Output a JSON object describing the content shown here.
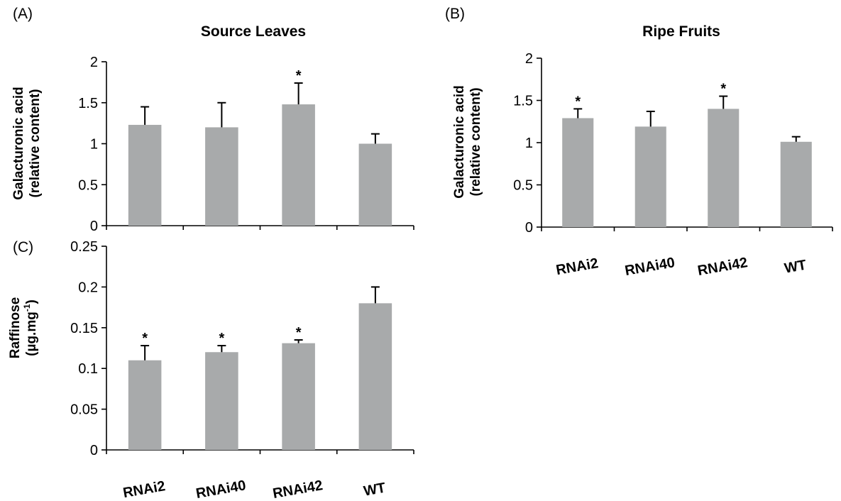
{
  "chart_data": [
    {
      "id": "A",
      "type": "bar",
      "panel_label": "(A)",
      "title": "Source Leaves",
      "ylabel_lines": [
        "Galacturonic acid",
        "(relative content)"
      ],
      "categories": [
        "RNAi2",
        "RNAi40",
        "RNAi42",
        "WT"
      ],
      "show_category_labels": false,
      "values": [
        1.23,
        1.2,
        1.48,
        1.0
      ],
      "errors": [
        0.22,
        0.3,
        0.26,
        0.12
      ],
      "significance": [
        "",
        "",
        "*",
        ""
      ],
      "ylim": [
        0,
        2
      ],
      "yticks": [
        0,
        0.5,
        1,
        1.5,
        2
      ],
      "ytick_labels": [
        "0",
        "0.5",
        "1",
        "1.5",
        "2"
      ],
      "bar_color": "#a8aaab",
      "grid": false
    },
    {
      "id": "B",
      "type": "bar",
      "panel_label": "(B)",
      "title": "Ripe Fruits",
      "ylabel_lines": [
        "Galacturonic acid",
        "(relative content)"
      ],
      "categories": [
        "RNAi2",
        "RNAi40",
        "RNAi42",
        "WT"
      ],
      "show_category_labels": true,
      "values": [
        1.29,
        1.19,
        1.4,
        1.01
      ],
      "errors": [
        0.11,
        0.18,
        0.15,
        0.06
      ],
      "significance": [
        "*",
        "",
        "*",
        ""
      ],
      "ylim": [
        0,
        2
      ],
      "yticks": [
        0,
        0.5,
        1,
        1.5,
        2
      ],
      "ytick_labels": [
        "0",
        "0.5",
        "1",
        "1.5",
        "2"
      ],
      "bar_color": "#a8aaab",
      "grid": false
    },
    {
      "id": "C",
      "type": "bar",
      "panel_label": "(C)",
      "title": "",
      "ylabel_lines": [
        "Raffinose",
        "(µg.mg",
        "-1",
        ")"
      ],
      "categories": [
        "RNAi2",
        "RNAi40",
        "RNAi42",
        "WT"
      ],
      "show_category_labels": true,
      "values": [
        0.11,
        0.12,
        0.131,
        0.18
      ],
      "errors": [
        0.018,
        0.008,
        0.004,
        0.02
      ],
      "significance": [
        "*",
        "*",
        "*",
        ""
      ],
      "ylim": [
        0,
        0.25
      ],
      "yticks": [
        0,
        0.05,
        0.1,
        0.15,
        0.2,
        0.25
      ],
      "ytick_labels": [
        "0",
        "0.05",
        "0.1",
        "0.15",
        "0.2",
        "0.25"
      ],
      "bar_color": "#a8aaab",
      "grid": false
    }
  ]
}
